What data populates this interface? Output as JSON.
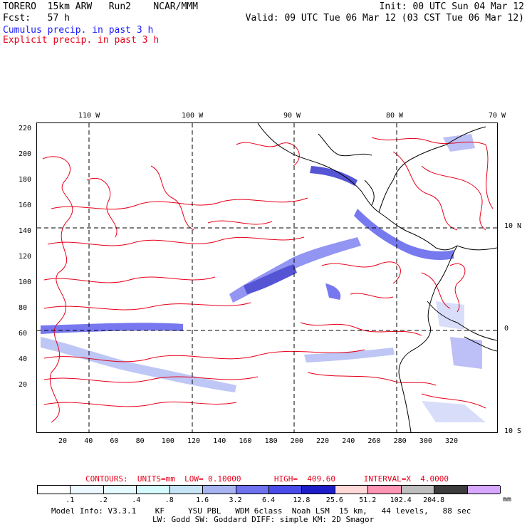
{
  "header": {
    "model": "TORERO  15km ARW   Run2    NCAR/MMM",
    "init": "Init: 00 UTC Sun 04 Mar 12",
    "fcst": "Fcst:   57 h",
    "valid": "Valid: 09 UTC Tue 06 Mar 12 (03 CST Tue 06 Mar 12)",
    "cumulus": "Cumulus precip. in past 3 h",
    "explicit": "Explicit precip. in past 3 h",
    "cumulus_color": "#1a1aff",
    "explicit_color": "#e8001a"
  },
  "map": {
    "lon_labels": [
      "110 W",
      "100 W",
      "90 W",
      "80 W",
      "70 W"
    ],
    "lat_labels": [
      "10 N",
      "0",
      "10 S"
    ],
    "y_ticks": [
      "220",
      "200",
      "180",
      "160",
      "140",
      "120",
      "100",
      "80",
      "60",
      "40",
      "20"
    ],
    "x_ticks": [
      "20",
      "40",
      "60",
      "80",
      "100",
      "120",
      "140",
      "160",
      "180",
      "200",
      "220",
      "240",
      "260",
      "280",
      "300",
      "320"
    ]
  },
  "contour_info": {
    "text": "CONTOURS:  UNITS=mm  LOW= 0.10000       HIGH=  409.60      INTERVAL=X  4.0000",
    "color": "#e8001a"
  },
  "colorbar": {
    "labels": [
      ".1",
      ".2",
      ".4",
      ".8",
      "1.6",
      "3.2",
      "6.4",
      "12.8",
      "25.6",
      "51.2",
      "102.4",
      "204.8"
    ],
    "units": "mm",
    "colors": [
      "#ffffff",
      "#eef8ff",
      "#e6fbff",
      "#d6fbff",
      "#c6e4f6",
      "#a8b4f2",
      "#6e72ee",
      "#4a4cea",
      "#1c1cc8",
      "#ffd8d8",
      "#ff94b4",
      "#bebebe",
      "#3c3c3c",
      "#d6a8ff"
    ]
  },
  "footer": {
    "line1": "Model Info: V3.3.1    KF     YSU PBL   WDM 6class  Noah LSM  15 km,   44 levels,   88 sec",
    "line2": "LW: Godd SW: Goddard DIFF: simple KM: 2D Smagor"
  }
}
